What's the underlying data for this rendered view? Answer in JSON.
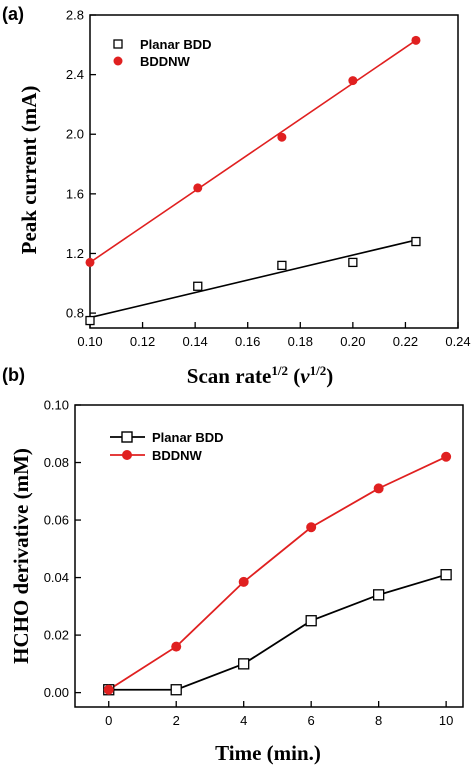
{
  "chart_data": [
    {
      "type": "scatter",
      "panel_label": "(a)",
      "xlabel": "Scan rate",
      "xlabel_sup": "1/2",
      "xlabel_unit_open": " (",
      "xlabel_unit_var": "v",
      "xlabel_unit_sup": "1/2",
      "xlabel_unit_close": ")",
      "ylabel": "Peak current (mA)",
      "xlim": [
        0.1,
        0.24
      ],
      "ylim": [
        0.7,
        2.8
      ],
      "xticks": [
        0.1,
        0.12,
        0.14,
        0.16,
        0.18,
        0.2,
        0.22,
        0.24
      ],
      "xtick_labels": [
        "0.10",
        "0.12",
        "0.14",
        "0.16",
        "0.18",
        "0.20",
        "0.22",
        "0.24"
      ],
      "yticks": [
        0.8,
        1.2,
        1.6,
        2.0,
        2.4,
        2.8
      ],
      "ytick_labels": [
        "0.8",
        "1.2",
        "1.6",
        "2.0",
        "2.4",
        "2.8"
      ],
      "legend_position": "top-left",
      "series": [
        {
          "name": "Planar BDD",
          "marker": "open-square",
          "color": "#000000",
          "x": [
            0.1,
            0.141,
            0.173,
            0.2,
            0.224
          ],
          "y": [
            0.75,
            0.98,
            1.12,
            1.14,
            1.28
          ],
          "fit": [
            [
              0.1,
              0.77
            ],
            [
              0.224,
              1.29
            ]
          ]
        },
        {
          "name": "BDDNW",
          "marker": "filled-circle",
          "color": "#e02020",
          "x": [
            0.1,
            0.141,
            0.173,
            0.2,
            0.224
          ],
          "y": [
            1.14,
            1.64,
            1.98,
            2.36,
            2.63
          ],
          "fit": [
            [
              0.1,
              1.14
            ],
            [
              0.224,
              2.63
            ]
          ]
        }
      ]
    },
    {
      "type": "line",
      "panel_label": "(b)",
      "xlabel": "Time (min.)",
      "ylabel": "HCHO derivative (mM)",
      "xlim": [
        -1,
        10.5
      ],
      "ylim": [
        -0.005,
        0.1
      ],
      "xticks": [
        0,
        2,
        4,
        6,
        8,
        10
      ],
      "xtick_labels": [
        "0",
        "2",
        "4",
        "6",
        "8",
        "10"
      ],
      "yticks": [
        0.0,
        0.02,
        0.04,
        0.06,
        0.08,
        0.1
      ],
      "ytick_labels": [
        "0.00",
        "0.02",
        "0.04",
        "0.06",
        "0.08",
        "0.10"
      ],
      "legend_position": "top-left",
      "series": [
        {
          "name": "Planar BDD",
          "marker": "open-square",
          "color": "#000000",
          "x": [
            0,
            2,
            4,
            6,
            8,
            10
          ],
          "y": [
            0.001,
            0.001,
            0.01,
            0.025,
            0.034,
            0.041
          ]
        },
        {
          "name": "BDDNW",
          "marker": "filled-circle",
          "color": "#e02020",
          "x": [
            0,
            2,
            4,
            6,
            8,
            10
          ],
          "y": [
            0.001,
            0.016,
            0.0385,
            0.0575,
            0.071,
            0.082
          ]
        }
      ]
    }
  ]
}
